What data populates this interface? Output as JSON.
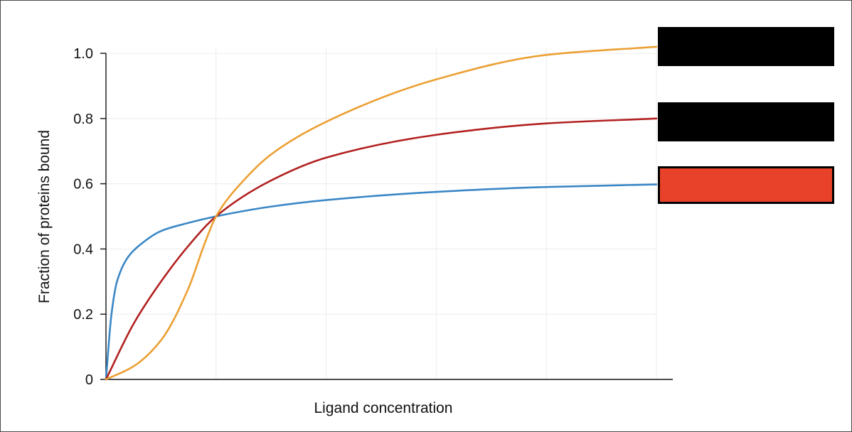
{
  "chart_data": {
    "type": "line",
    "title": "",
    "xlabel": "Ligand concentration",
    "ylabel": "Fraction of proteins bound",
    "xlim": [
      0,
      5
    ],
    "ylim": [
      0,
      1.0
    ],
    "grid": true,
    "y_ticks": [
      0,
      0.2,
      0.4,
      0.6,
      0.8,
      1.0
    ],
    "y_tick_labels": [
      "0",
      "0.2",
      "0.4",
      "0.6",
      "0.8",
      "1.0"
    ],
    "x_gridlines": [
      1,
      2,
      3,
      4,
      5
    ],
    "legend_position": "right",
    "series": [
      {
        "color": "#3a87c6",
        "x": [
          0,
          0.05,
          0.1,
          0.2,
          0.3,
          0.5,
          0.75,
          1.0,
          1.5,
          2.0,
          3.0,
          4.0,
          5.0
        ],
        "y": [
          0,
          0.2,
          0.3,
          0.375,
          0.41,
          0.455,
          0.48,
          0.5,
          0.53,
          0.55,
          0.575,
          0.59,
          0.598
        ]
      },
      {
        "color": "#b22020",
        "x": [
          0,
          0.25,
          0.5,
          0.75,
          1.0,
          1.5,
          2.0,
          3.0,
          4.0,
          5.0
        ],
        "y": [
          0,
          0.17,
          0.3,
          0.41,
          0.5,
          0.61,
          0.68,
          0.75,
          0.785,
          0.8
        ]
      },
      {
        "color": "#eba034",
        "x": [
          0,
          0.25,
          0.5,
          0.75,
          0.9,
          1.0,
          1.25,
          1.5,
          2.0,
          3.0,
          4.0,
          5.0
        ],
        "y": [
          0,
          0.04,
          0.12,
          0.28,
          0.42,
          0.5,
          0.61,
          0.69,
          0.79,
          0.92,
          0.995,
          1.02
        ]
      }
    ],
    "legend_entries": [
      {
        "color": "#000000",
        "border": "#000000"
      },
      {
        "color": "#000000",
        "border": "#000000"
      },
      {
        "color": "#e8432a",
        "border": "#000000"
      }
    ]
  }
}
